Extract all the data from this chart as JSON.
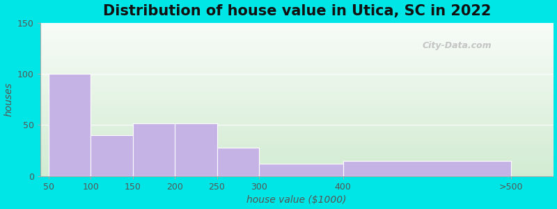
{
  "title": "Distribution of house value in Utica, SC in 2022",
  "xlabel": "house value ($1000)",
  "ylabel": "houses",
  "xtick_labels": [
    "50",
    "100",
    "150",
    "200",
    "250",
    "300",
    "400",
    ">500"
  ],
  "xtick_positions": [
    0,
    1,
    2,
    3,
    4,
    5,
    7,
    11
  ],
  "bar_lefts": [
    0,
    1,
    2,
    3,
    4,
    5,
    7
  ],
  "bar_widths": [
    1,
    1,
    1,
    1,
    1,
    2,
    4
  ],
  "bar_heights": [
    100,
    40,
    52,
    52,
    28,
    12,
    15
  ],
  "bar_color": "#c5b3e6",
  "bar_edgecolor": "#ffffff",
  "ylim": [
    0,
    150
  ],
  "yticks": [
    0,
    50,
    100,
    150
  ],
  "figure_bg": "#00e5e5",
  "title_fontsize": 15,
  "axis_label_fontsize": 10,
  "tick_fontsize": 9,
  "watermark_text": "City-Data.com",
  "grad_top_color": "#f8fcf8",
  "grad_bottom_color": "#dff0d8"
}
